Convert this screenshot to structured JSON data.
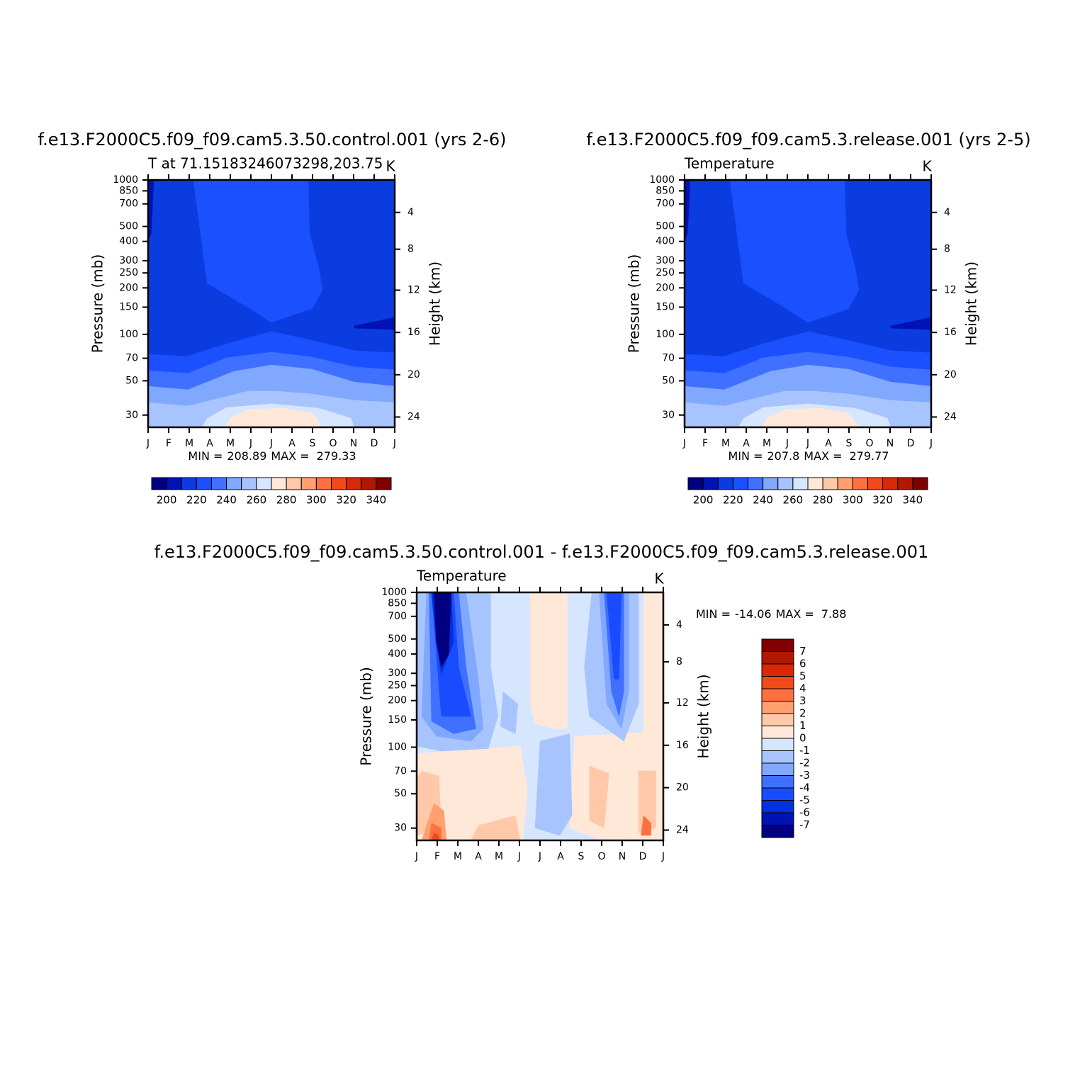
{
  "chart_data": [
    {
      "type": "contour",
      "title": "f.e13.F2000C5.f09_f09.cam5.3.50.control.001 (yrs 2-6)",
      "subtitle": "T at 71.15183246073298,203.75",
      "units": "K",
      "categories": [
        "J",
        "F",
        "M",
        "A",
        "M",
        "J",
        "J",
        "A",
        "S",
        "O",
        "N",
        "D",
        "J"
      ],
      "ylabel": "Pressure (mb)",
      "yscale": "log",
      "ylim": [
        1000,
        25
      ],
      "yticks": [
        30,
        50,
        70,
        100,
        150,
        200,
        250,
        300,
        400,
        500,
        700,
        850,
        1000
      ],
      "y2label": "Height (km)",
      "y2ticks": [
        4,
        8,
        12,
        16,
        20,
        24
      ],
      "min_label": "MIN =",
      "min": 208.89,
      "max_label": "MAX =",
      "max": 279.33,
      "colorbar": {
        "orientation": "horizontal",
        "levels": [
          200,
          210,
          220,
          230,
          240,
          250,
          260,
          270,
          280,
          290,
          300,
          310,
          320,
          330,
          340
        ],
        "ticks": [
          200,
          220,
          240,
          260,
          280,
          300,
          320,
          340
        ],
        "colors": [
          "#000080",
          "#0012b4",
          "#0a3ce0",
          "#1a50ff",
          "#4070ff",
          "#80a8ff",
          "#a8c4ff",
          "#d6e6ff",
          "#ffe8d8",
          "#ffc8a8",
          "#ffa070",
          "#ff7040",
          "#f04a1a",
          "#d82808",
          "#b01800",
          "#800000"
        ]
      }
    },
    {
      "type": "contour",
      "title": "f.e13.F2000C5.f09_f09.cam5.3.release.001 (yrs 2-5)",
      "subtitle": "Temperature",
      "units": "K",
      "categories": [
        "J",
        "F",
        "M",
        "A",
        "M",
        "J",
        "J",
        "A",
        "S",
        "O",
        "N",
        "D",
        "J"
      ],
      "ylabel": "Pressure (mb)",
      "yscale": "log",
      "ylim": [
        1000,
        25
      ],
      "yticks": [
        30,
        50,
        70,
        100,
        150,
        200,
        250,
        300,
        400,
        500,
        700,
        850,
        1000
      ],
      "y2label": "Height (km)",
      "y2ticks": [
        4,
        8,
        12,
        16,
        20,
        24
      ],
      "min_label": "MIN =",
      "min": 207.8,
      "max_label": "MAX =",
      "max": 279.77,
      "colorbar": {
        "orientation": "horizontal",
        "levels": [
          200,
          210,
          220,
          230,
          240,
          250,
          260,
          270,
          280,
          290,
          300,
          310,
          320,
          330,
          340
        ],
        "ticks": [
          200,
          220,
          240,
          260,
          280,
          300,
          320,
          340
        ],
        "colors": [
          "#000080",
          "#0012b4",
          "#0a3ce0",
          "#1a50ff",
          "#4070ff",
          "#80a8ff",
          "#a8c4ff",
          "#d6e6ff",
          "#ffe8d8",
          "#ffc8a8",
          "#ffa070",
          "#ff7040",
          "#f04a1a",
          "#d82808",
          "#b01800",
          "#800000"
        ]
      }
    },
    {
      "type": "contour",
      "title": "f.e13.F2000C5.f09_f09.cam5.3.50.control.001 - f.e13.F2000C5.f09_f09.cam5.3.release.001",
      "subtitle": "Temperature",
      "units": "K",
      "categories": [
        "J",
        "F",
        "M",
        "A",
        "M",
        "J",
        "J",
        "A",
        "S",
        "O",
        "N",
        "D",
        "J"
      ],
      "ylabel": "Pressure (mb)",
      "yscale": "log",
      "ylim": [
        1000,
        25
      ],
      "yticks": [
        30,
        50,
        70,
        100,
        150,
        200,
        250,
        300,
        400,
        500,
        700,
        850,
        1000
      ],
      "y2label": "Height (km)",
      "y2ticks": [
        4,
        8,
        12,
        16,
        20,
        24
      ],
      "min_label": "MIN =",
      "min": -14.06,
      "max_label": "MAX =",
      "max": 7.88,
      "colorbar": {
        "orientation": "vertical",
        "levels": [
          -7,
          -6,
          -5,
          -4,
          -3,
          -2,
          -1,
          0,
          1,
          2,
          3,
          4,
          5,
          6,
          7
        ],
        "ticks": [
          -7,
          -6,
          -5,
          -4,
          -3,
          -2,
          -1,
          0,
          1,
          2,
          3,
          4,
          5,
          6,
          7
        ],
        "colors": [
          "#000080",
          "#0012b4",
          "#0030e0",
          "#1a4cff",
          "#4070ff",
          "#80a8ff",
          "#a8c4ff",
          "#d6e6ff",
          "#ffe8d8",
          "#ffc8a8",
          "#ffa070",
          "#ff7040",
          "#f04a1a",
          "#d82808",
          "#b01800",
          "#800000"
        ]
      }
    }
  ]
}
